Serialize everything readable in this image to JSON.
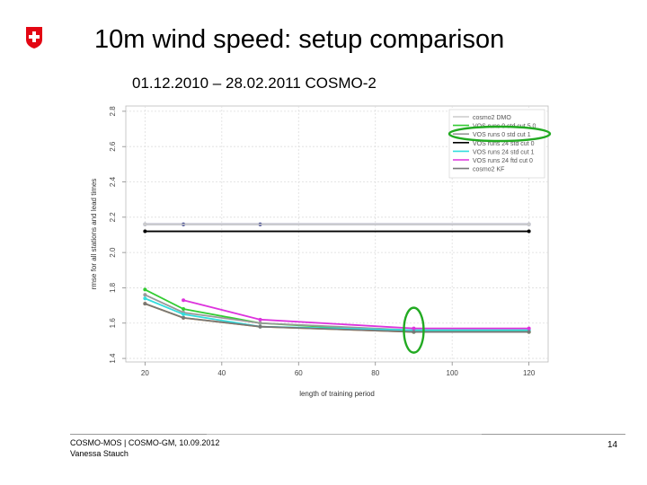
{
  "header": {
    "title": "10m wind speed: setup comparison",
    "subtitle": "01.12.2010 – 28.02.2011 COSMO-2",
    "logo_icon": "swiss-cross-icon",
    "logo_color": "#e30613"
  },
  "footer": {
    "line1": "COSMO-MOS | COSMO-GM, 10.09.2012",
    "line2": "Vanessa Stauch",
    "page_number": "14"
  },
  "chart_data": {
    "type": "line",
    "xlabel": "length of training period",
    "ylabel": "rmse for all stations and lead times",
    "x_ticks": [
      20,
      40,
      60,
      80,
      100,
      120
    ],
    "y_ticks": [
      1.4,
      1.6,
      1.8,
      2.0,
      2.2,
      2.4,
      2.6,
      2.8
    ],
    "y_tick_labels": [
      "1.4",
      "1.6",
      "1.8",
      "2.0",
      "2.2",
      "2.4",
      "2.6",
      "2.8"
    ],
    "xlim": [
      15,
      125
    ],
    "ylim": [
      1.38,
      2.83
    ],
    "grid": true,
    "legend_position": "top-right",
    "series": [
      {
        "name": "cosmo2 DMO",
        "color": "#cccccc",
        "x": [
          20,
          120
        ],
        "y": [
          2.16,
          2.16
        ]
      },
      {
        "name": "VOS runs 0 std cut 5.0",
        "color": "#33cc33",
        "x": [
          20,
          30,
          50,
          90,
          120
        ],
        "y": [
          1.79,
          1.68,
          1.6,
          1.55,
          1.55
        ]
      },
      {
        "name": "VOS runs 0 std cut 1",
        "color": "#999999",
        "x": [
          20,
          30,
          50,
          90,
          120
        ],
        "y": [
          1.76,
          1.66,
          1.6,
          1.56,
          1.56
        ]
      },
      {
        "name": "VOS runs 24 std cut 0",
        "color": "#000000",
        "x": [
          20,
          120
        ],
        "y": [
          2.12,
          2.12
        ]
      },
      {
        "name": "VOS runs 24 std cut 1",
        "color": "#33dddd",
        "x": [
          20,
          30,
          50,
          90,
          120
        ],
        "y": [
          1.74,
          1.65,
          1.58,
          1.56,
          1.56
        ]
      },
      {
        "name": "VOS runs 24 ftd cut 0",
        "color": "#dd33dd",
        "x": [
          30,
          50,
          90,
          120
        ],
        "y": [
          1.73,
          1.62,
          1.57,
          1.57
        ]
      },
      {
        "name": "cosmo2 KF",
        "color": "#777777",
        "x": [
          20,
          30,
          50,
          90,
          120
        ],
        "y": [
          1.71,
          1.63,
          1.58,
          1.55,
          1.55
        ]
      }
    ],
    "extra_lines": [
      {
        "color": "#1a237e",
        "x": [
          20,
          30,
          50,
          120
        ],
        "y": [
          2.16,
          2.16,
          2.16,
          2.16
        ]
      },
      {
        "color": "#ff9900",
        "x": [
          20,
          30,
          50,
          90,
          120
        ],
        "y": [
          1.71,
          1.63,
          1.58,
          1.55,
          1.55
        ]
      }
    ],
    "highlight_colors": {
      "ellipse": "#22aa22"
    }
  }
}
